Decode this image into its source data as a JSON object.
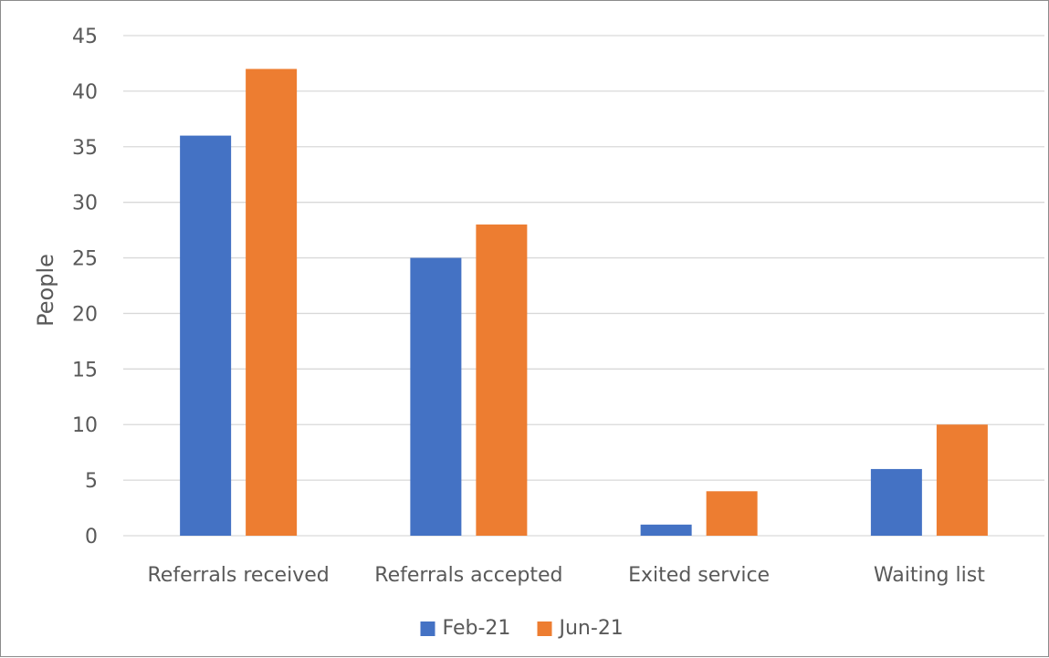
{
  "chart_data": {
    "type": "bar",
    "title": "",
    "xlabel": "",
    "ylabel": "People",
    "categories": [
      "Referrals received",
      "Referrals accepted",
      "Exited service",
      "Waiting list"
    ],
    "series": [
      {
        "name": "Feb-21",
        "color": "#4472c4",
        "values": [
          36,
          25,
          1,
          6
        ]
      },
      {
        "name": "Jun-21",
        "color": "#ed7d31",
        "values": [
          42,
          28,
          4,
          10
        ]
      }
    ],
    "ylim": [
      0,
      45
    ],
    "yticks": [
      0,
      5,
      10,
      15,
      20,
      25,
      30,
      35,
      40,
      45
    ],
    "grid": true,
    "gridColor": "#d9d9d9",
    "legend": "bottom-center"
  }
}
